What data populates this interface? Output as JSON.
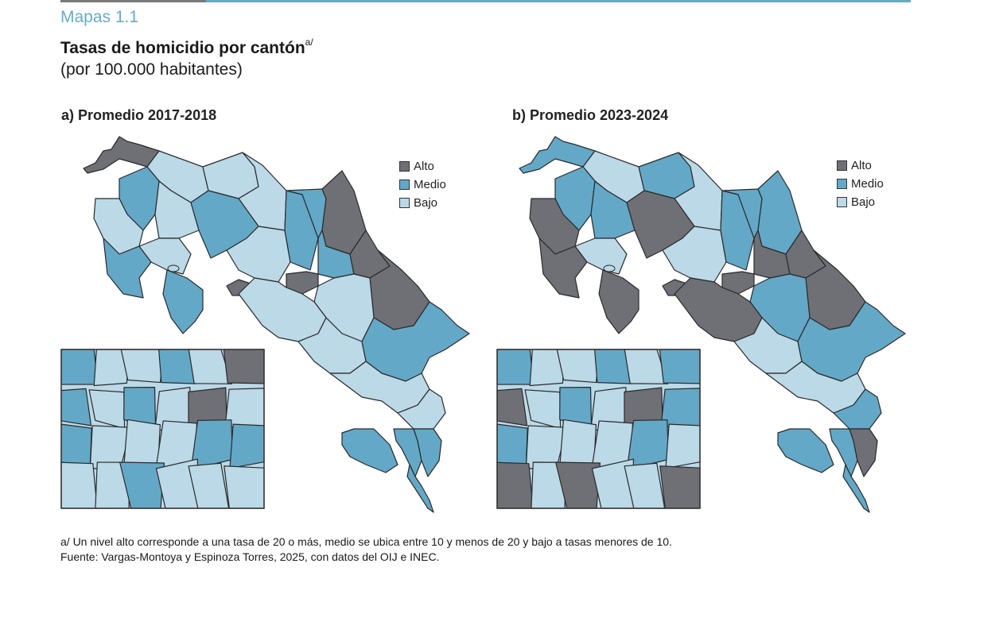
{
  "header": {
    "kicker": "Mapas 1.1",
    "title": "Tasas de homicidio por cantón",
    "title_superscript": "a/",
    "subtitle": "(por 100.000 habitantes)"
  },
  "colors": {
    "accent": "#6aaac6",
    "alto": "#6f7076",
    "medio": "#64a8c7",
    "bajo": "#bcd9e7",
    "border": "#2a2a2a"
  },
  "legend": [
    {
      "key": "alto",
      "label": "Alto"
    },
    {
      "key": "medio",
      "label": "Medio"
    },
    {
      "key": "bajo",
      "label": "Bajo"
    }
  ],
  "panels": [
    {
      "id": "a",
      "title": "a) Promedio 2017-2018",
      "regions": {
        "nw_tip": "alto",
        "north_a": "bajo",
        "north_b": "bajo",
        "north_c": "bajo",
        "guana_w": "medio",
        "guana_c": "bajo",
        "nicoya_n": "bajo",
        "nicoya_s": "medio",
        "nicoya_tip": "medio",
        "gulf_n": "bajo",
        "central_w": "medio",
        "central_c": "bajo",
        "central_e": "medio",
        "sarapiqui": "medio",
        "pococi": "alto",
        "guacimo": "medio",
        "siquirres": "alto",
        "limon": "alto",
        "talamanca_n": "bajo",
        "caribbean_s": "medio",
        "pacific_c": "bajo",
        "perez_z": "bajo",
        "buenos_a": "bajo",
        "coto_n": "bajo",
        "osa": "medio",
        "golfito": "medio",
        "corredores": "medio",
        "sj_core": "alto",
        "puntarenas": "alto"
      },
      "inset": {
        "cells": [
          "medio",
          "bajo",
          "bajo",
          "medio",
          "bajo",
          "alto",
          "medio",
          "bajo",
          "medio",
          "bajo",
          "alto",
          "bajo",
          "medio",
          "bajo",
          "bajo",
          "bajo",
          "medio",
          "medio",
          "bajo",
          "bajo",
          "medio",
          "bajo",
          "bajo",
          "bajo"
        ]
      }
    },
    {
      "id": "b",
      "title": "b) Promedio 2023-2024",
      "regions": {
        "nw_tip": "medio",
        "north_a": "bajo",
        "north_b": "medio",
        "north_c": "bajo",
        "guana_w": "medio",
        "guana_c": "medio",
        "nicoya_n": "alto",
        "nicoya_s": "alto",
        "nicoya_tip": "alto",
        "gulf_n": "bajo",
        "central_w": "alto",
        "central_c": "bajo",
        "central_e": "medio",
        "sarapiqui": "medio",
        "pococi": "medio",
        "guacimo": "alto",
        "siquirres": "alto",
        "limon": "alto",
        "talamanca_n": "medio",
        "caribbean_s": "medio",
        "pacific_c": "alto",
        "perez_z": "bajo",
        "buenos_a": "bajo",
        "coto_n": "medio",
        "osa": "medio",
        "golfito": "medio",
        "corredores": "alto",
        "sj_core": "alto",
        "puntarenas": "alto"
      },
      "inset": {
        "cells": [
          "medio",
          "bajo",
          "bajo",
          "medio",
          "bajo",
          "medio",
          "alto",
          "bajo",
          "medio",
          "bajo",
          "alto",
          "medio",
          "medio",
          "bajo",
          "bajo",
          "bajo",
          "medio",
          "bajo",
          "alto",
          "bajo",
          "alto",
          "bajo",
          "bajo",
          "alto"
        ]
      }
    }
  ],
  "notes": {
    "footnote": "a/ Un nivel alto corresponde a una tasa de 20 o más, medio se ubica entre 10 y menos de 20 y bajo a tasas menores de 10.",
    "source": "Fuente: Vargas-Montoya y Espinoza Torres, 2025, con datos del OIJ e INEC."
  }
}
